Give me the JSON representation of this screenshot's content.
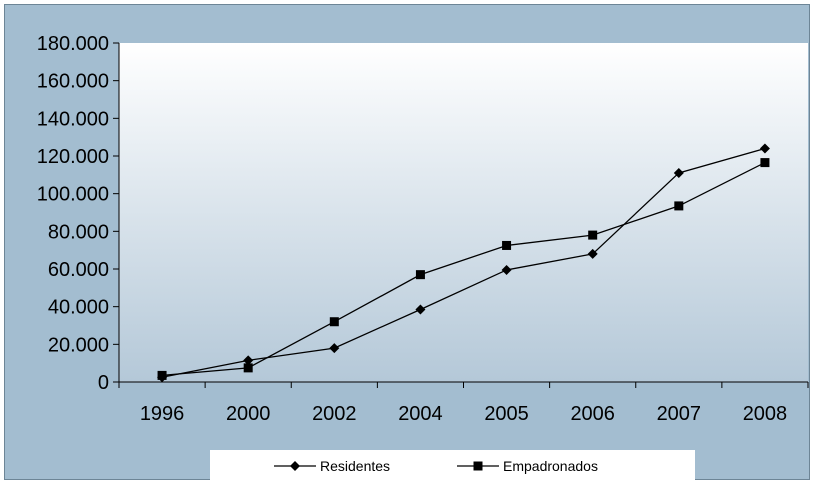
{
  "chart_data": {
    "type": "line",
    "title": "",
    "xlabel": "",
    "ylabel": "",
    "categories": [
      "1996",
      "2000",
      "2002",
      "2004",
      "2005",
      "2006",
      "2007",
      "2008"
    ],
    "ylim": [
      0,
      180000
    ],
    "yticks": [
      0,
      20000,
      40000,
      60000,
      80000,
      100000,
      120000,
      140000,
      160000,
      180000
    ],
    "ytick_labels": [
      "0",
      "20.000",
      "40.000",
      "60.000",
      "80.000",
      "100.000",
      "120.000",
      "140.000",
      "160.000",
      "180.000"
    ],
    "grid": false,
    "legend_position": "bottom",
    "series": [
      {
        "name": "Residentes",
        "marker": "diamond",
        "color": "#000000",
        "values": [
          2500,
          11500,
          18000,
          38500,
          59500,
          68000,
          111000,
          124000
        ]
      },
      {
        "name": "Empadronados",
        "marker": "square",
        "color": "#000000",
        "values": [
          3500,
          7500,
          32000,
          57000,
          72500,
          78000,
          93500,
          116500
        ]
      }
    ],
    "background": {
      "outer": "#a3bdd0",
      "plot_top": "#ffffff",
      "plot_bottom": "#b4c8d8"
    }
  }
}
